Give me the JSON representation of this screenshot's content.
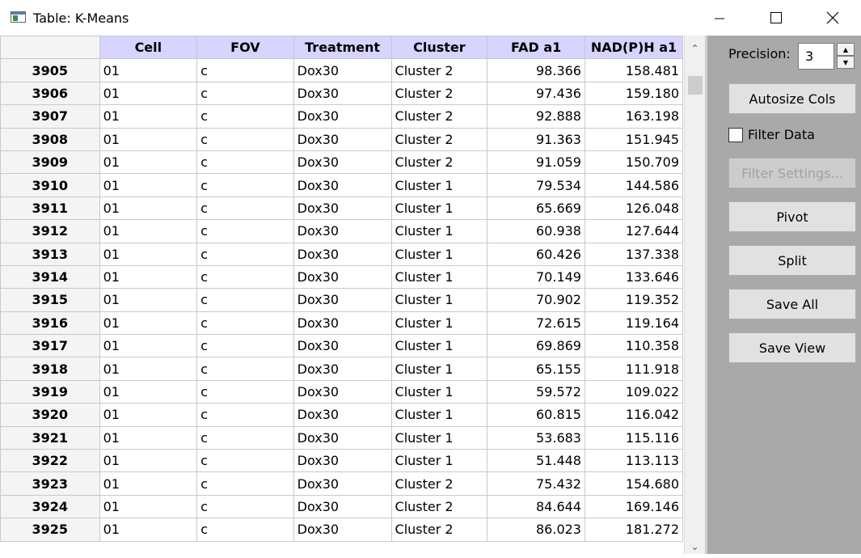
{
  "window": {
    "title": "Table: K-Means",
    "minimize_icon": "minimize-icon",
    "maximize_icon": "maximize-icon",
    "close_icon": "close-icon"
  },
  "table": {
    "columns": [
      "Cell",
      "FOV",
      "Treatment",
      "Cluster",
      "FAD a1",
      "NAD(P)H a1"
    ],
    "rows": [
      {
        "id": "3905",
        "cells": [
          "01",
          "c",
          "Dox30",
          "Cluster 2",
          "98.366",
          "158.481"
        ]
      },
      {
        "id": "3906",
        "cells": [
          "01",
          "c",
          "Dox30",
          "Cluster 2",
          "97.436",
          "159.180"
        ]
      },
      {
        "id": "3907",
        "cells": [
          "01",
          "c",
          "Dox30",
          "Cluster 2",
          "92.888",
          "163.198"
        ]
      },
      {
        "id": "3908",
        "cells": [
          "01",
          "c",
          "Dox30",
          "Cluster 2",
          "91.363",
          "151.945"
        ]
      },
      {
        "id": "3909",
        "cells": [
          "01",
          "c",
          "Dox30",
          "Cluster 2",
          "91.059",
          "150.709"
        ]
      },
      {
        "id": "3910",
        "cells": [
          "01",
          "c",
          "Dox30",
          "Cluster 1",
          "79.534",
          "144.586"
        ]
      },
      {
        "id": "3911",
        "cells": [
          "01",
          "c",
          "Dox30",
          "Cluster 1",
          "65.669",
          "126.048"
        ]
      },
      {
        "id": "3912",
        "cells": [
          "01",
          "c",
          "Dox30",
          "Cluster 1",
          "60.938",
          "127.644"
        ]
      },
      {
        "id": "3913",
        "cells": [
          "01",
          "c",
          "Dox30",
          "Cluster 1",
          "60.426",
          "137.338"
        ]
      },
      {
        "id": "3914",
        "cells": [
          "01",
          "c",
          "Dox30",
          "Cluster 1",
          "70.149",
          "133.646"
        ]
      },
      {
        "id": "3915",
        "cells": [
          "01",
          "c",
          "Dox30",
          "Cluster 1",
          "70.902",
          "119.352"
        ]
      },
      {
        "id": "3916",
        "cells": [
          "01",
          "c",
          "Dox30",
          "Cluster 1",
          "72.615",
          "119.164"
        ]
      },
      {
        "id": "3917",
        "cells": [
          "01",
          "c",
          "Dox30",
          "Cluster 1",
          "69.869",
          "110.358"
        ]
      },
      {
        "id": "3918",
        "cells": [
          "01",
          "c",
          "Dox30",
          "Cluster 1",
          "65.155",
          "111.918"
        ]
      },
      {
        "id": "3919",
        "cells": [
          "01",
          "c",
          "Dox30",
          "Cluster 1",
          "59.572",
          "109.022"
        ]
      },
      {
        "id": "3920",
        "cells": [
          "01",
          "c",
          "Dox30",
          "Cluster 1",
          "60.815",
          "116.042"
        ]
      },
      {
        "id": "3921",
        "cells": [
          "01",
          "c",
          "Dox30",
          "Cluster 1",
          "53.683",
          "115.116"
        ]
      },
      {
        "id": "3922",
        "cells": [
          "01",
          "c",
          "Dox30",
          "Cluster 1",
          "51.448",
          "113.113"
        ]
      },
      {
        "id": "3923",
        "cells": [
          "01",
          "c",
          "Dox30",
          "Cluster 2",
          "75.432",
          "154.680"
        ]
      },
      {
        "id": "3924",
        "cells": [
          "01",
          "c",
          "Dox30",
          "Cluster 2",
          "84.644",
          "169.146"
        ]
      },
      {
        "id": "3925",
        "cells": [
          "01",
          "c",
          "Dox30",
          "Cluster 2",
          "86.023",
          "181.272"
        ]
      }
    ]
  },
  "side_panel": {
    "precision_label": "Precision:",
    "precision_value": "3",
    "autosize_label": "Autosize Cols",
    "filter_data_label": "Filter Data",
    "filter_data_checked": false,
    "filter_settings_label": "Filter Settings...",
    "pivot_label": "Pivot",
    "split_label": "Split",
    "save_all_label": "Save All",
    "save_view_label": "Save View"
  },
  "colors": {
    "header_bg": "#d7d4ff",
    "panel_bg": "#a9a9a9",
    "grid_line": "#c9c9c9"
  }
}
